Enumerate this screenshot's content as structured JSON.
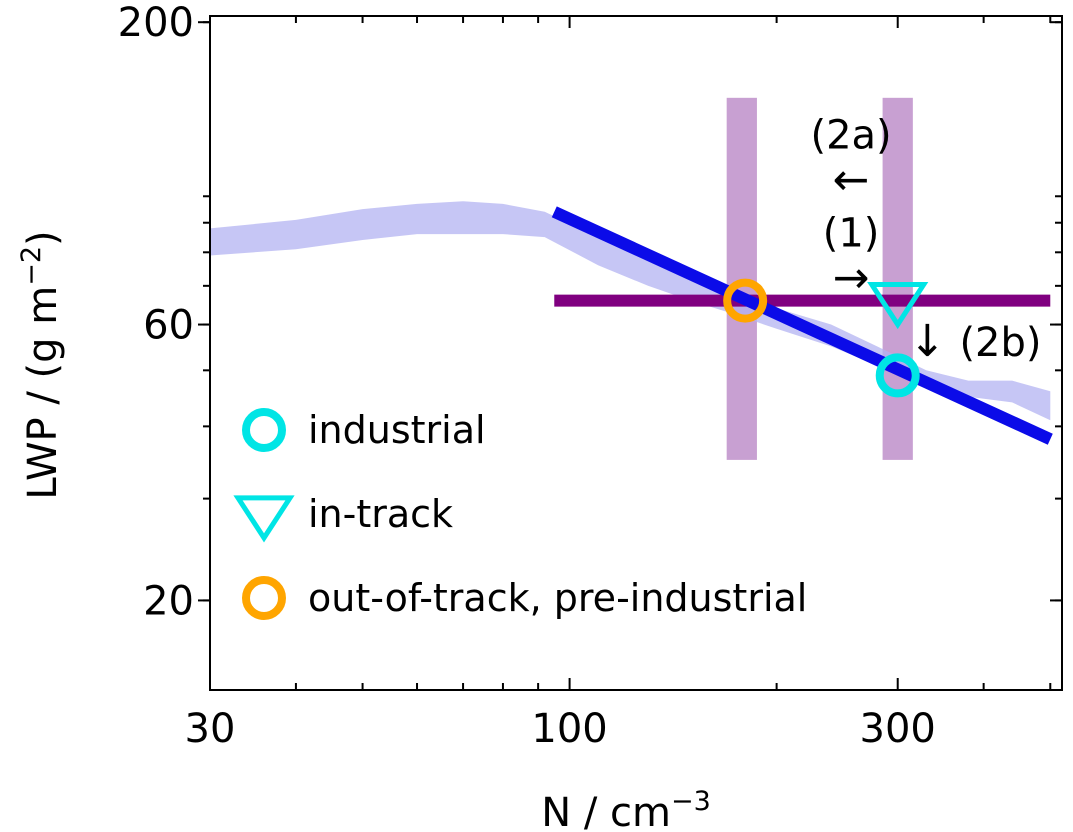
{
  "chart_data": {
    "type": "line",
    "title": "",
    "xlabel": "N / cm",
    "xlabel_sup": "−3",
    "ylabel": "LWP / (g m",
    "ylabel_sup": "−2",
    "ylabel_close": ")",
    "xscale": "log",
    "yscale": "log",
    "xlim": [
      30,
      520
    ],
    "ylim": [
      14,
      205
    ],
    "xticks": [
      30,
      100,
      300
    ],
    "xtick_labels": [
      "30",
      "100",
      "300"
    ],
    "yticks": [
      20,
      60,
      200
    ],
    "ytick_labels": [
      "20",
      "60",
      "200"
    ],
    "grid": false,
    "series": [
      {
        "kind": "band",
        "color": "#b3b3f2",
        "x": [
          30,
          40,
          50,
          60,
          70,
          80,
          92,
          110,
          130,
          150,
          170,
          200,
          240,
          280,
          330,
          380,
          440,
          500
        ],
        "y_low": [
          79,
          81,
          84,
          86,
          86,
          86,
          85,
          76,
          70,
          66,
          63,
          59,
          55,
          51,
          47,
          45,
          44,
          41
        ],
        "y_high": [
          88,
          91,
          95,
          97,
          98,
          97,
          94,
          85,
          78,
          72,
          68,
          64,
          60,
          55,
          50,
          48,
          48,
          46
        ]
      },
      {
        "kind": "line",
        "color": "#0b0be8",
        "x": [
          95,
          500
        ],
        "y": [
          94,
          38
        ]
      },
      {
        "kind": "hline",
        "color": "#800080",
        "x": [
          95,
          500
        ],
        "y": [
          66,
          66
        ]
      }
    ],
    "vbands": [
      {
        "x": 178,
        "half_width_log": 0.022,
        "y": [
          35,
          148
        ],
        "color": "#c8a0d2"
      },
      {
        "x": 300,
        "half_width_log": 0.022,
        "y": [
          35,
          148
        ],
        "color": "#c8a0d2"
      }
    ],
    "points": [
      {
        "name": "out-of-track, pre-industrial",
        "marker": "circle",
        "x": 180,
        "y": 66,
        "color": "#ffa500"
      },
      {
        "name": "in-track",
        "marker": "triangle-down",
        "x": 300,
        "y": 66,
        "color": "#00e5e5"
      },
      {
        "name": "industrial",
        "marker": "circle",
        "x": 300,
        "y": 49,
        "color": "#00e5e5"
      }
    ],
    "annotations": [
      {
        "text": "(2a)",
        "arrow": "←",
        "x": 240,
        "y": 118
      },
      {
        "text": "(1)",
        "arrow": "→",
        "x": 240,
        "y": 80
      },
      {
        "text": "(2b)",
        "arrow": "↓",
        "x": 345,
        "y": 56
      }
    ],
    "legend": {
      "placement": "lower-left",
      "entries": [
        {
          "label": "industrial",
          "marker": "circle",
          "color": "#00e5e5"
        },
        {
          "label": "in-track",
          "marker": "triangle-down",
          "color": "#00e5e5"
        },
        {
          "label": "out-of-track, pre-industrial",
          "marker": "circle",
          "color": "#ffa500"
        }
      ]
    }
  }
}
